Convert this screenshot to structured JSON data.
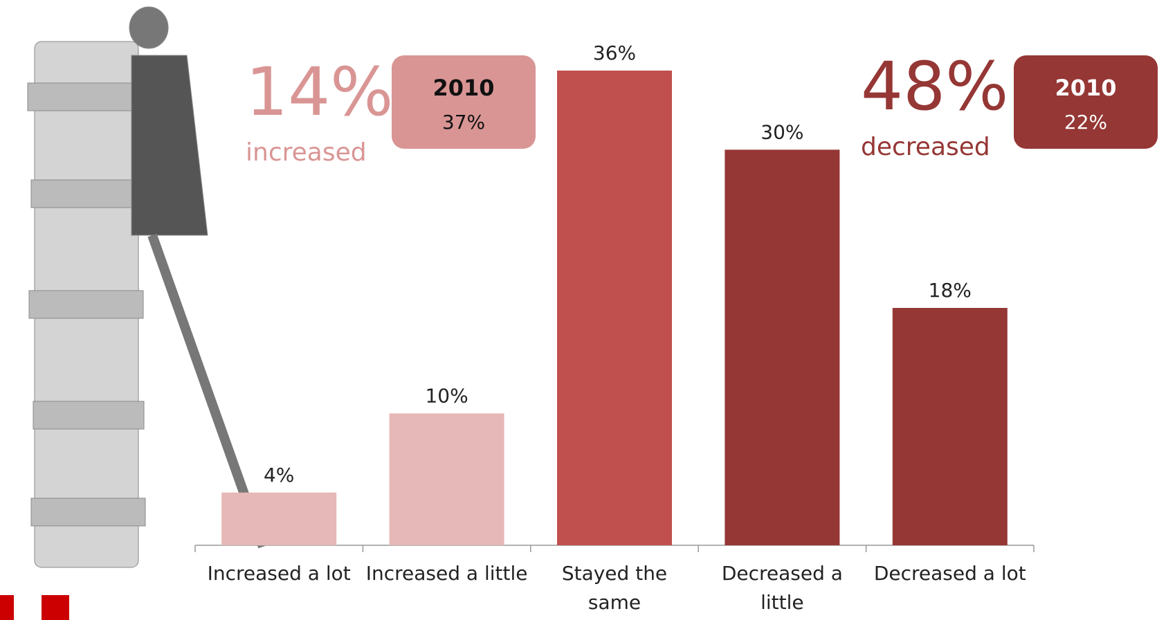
{
  "chart_data": {
    "type": "bar",
    "categories": [
      "Increased a lot",
      "Increased a little",
      "Stayed the same",
      "Decreased a little",
      "Decreased a lot"
    ],
    "values": [
      4,
      10,
      36,
      30,
      18
    ],
    "value_labels": [
      "4%",
      "10%",
      "36%",
      "30%",
      "18%"
    ],
    "colors": [
      "#e6b8b7",
      "#e6b8b7",
      "#c0504d",
      "#953735",
      "#953735"
    ],
    "annotations": [
      {
        "big": "14%",
        "caption": "increased",
        "box_title": "2010",
        "box_text": "37%",
        "color": "#d99594"
      },
      {
        "big": "48%",
        "caption": "decreased",
        "box_title": "2010",
        "box_text": "22%",
        "color": "#953735"
      }
    ]
  }
}
